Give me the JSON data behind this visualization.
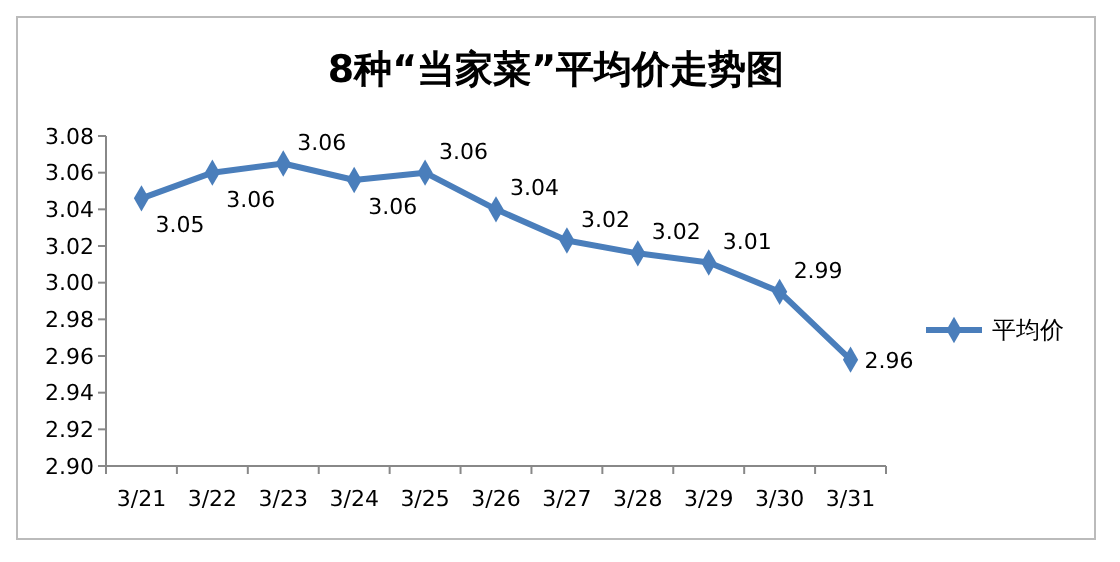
{
  "chart_data": {
    "type": "line",
    "title": "8种“当家菜”平均价走势图",
    "categories": [
      "3/21",
      "3/22",
      "3/23",
      "3/24",
      "3/25",
      "3/26",
      "3/27",
      "3/28",
      "3/29",
      "3/30",
      "3/31"
    ],
    "series": [
      {
        "name": "平均价",
        "color": "#4a7ebb",
        "values": [
          3.046,
          3.06,
          3.065,
          3.056,
          3.06,
          3.04,
          3.023,
          3.016,
          3.011,
          2.995,
          2.958
        ],
        "value_labels": [
          "3.05",
          "3.06",
          "3.06",
          "3.06",
          "3.06",
          "3.04",
          "3.02",
          "3.02",
          "3.01",
          "2.99",
          "2.96"
        ]
      }
    ],
    "ylim": [
      2.9,
      3.08
    ],
    "yticks": [
      {
        "value": 2.9,
        "label": "2.90"
      },
      {
        "value": 2.92,
        "label": "2.92"
      },
      {
        "value": 2.94,
        "label": "2.94"
      },
      {
        "value": 2.96,
        "label": "2.96"
      },
      {
        "value": 2.98,
        "label": "2.98"
      },
      {
        "value": 3.0,
        "label": "3.00"
      },
      {
        "value": 3.02,
        "label": "3.02"
      },
      {
        "value": 3.04,
        "label": "3.04"
      },
      {
        "value": 3.06,
        "label": "3.06"
      },
      {
        "value": 3.08,
        "label": "3.08"
      }
    ],
    "marker": "diamond",
    "line_style": "solid",
    "legend": "right",
    "grid": false
  }
}
